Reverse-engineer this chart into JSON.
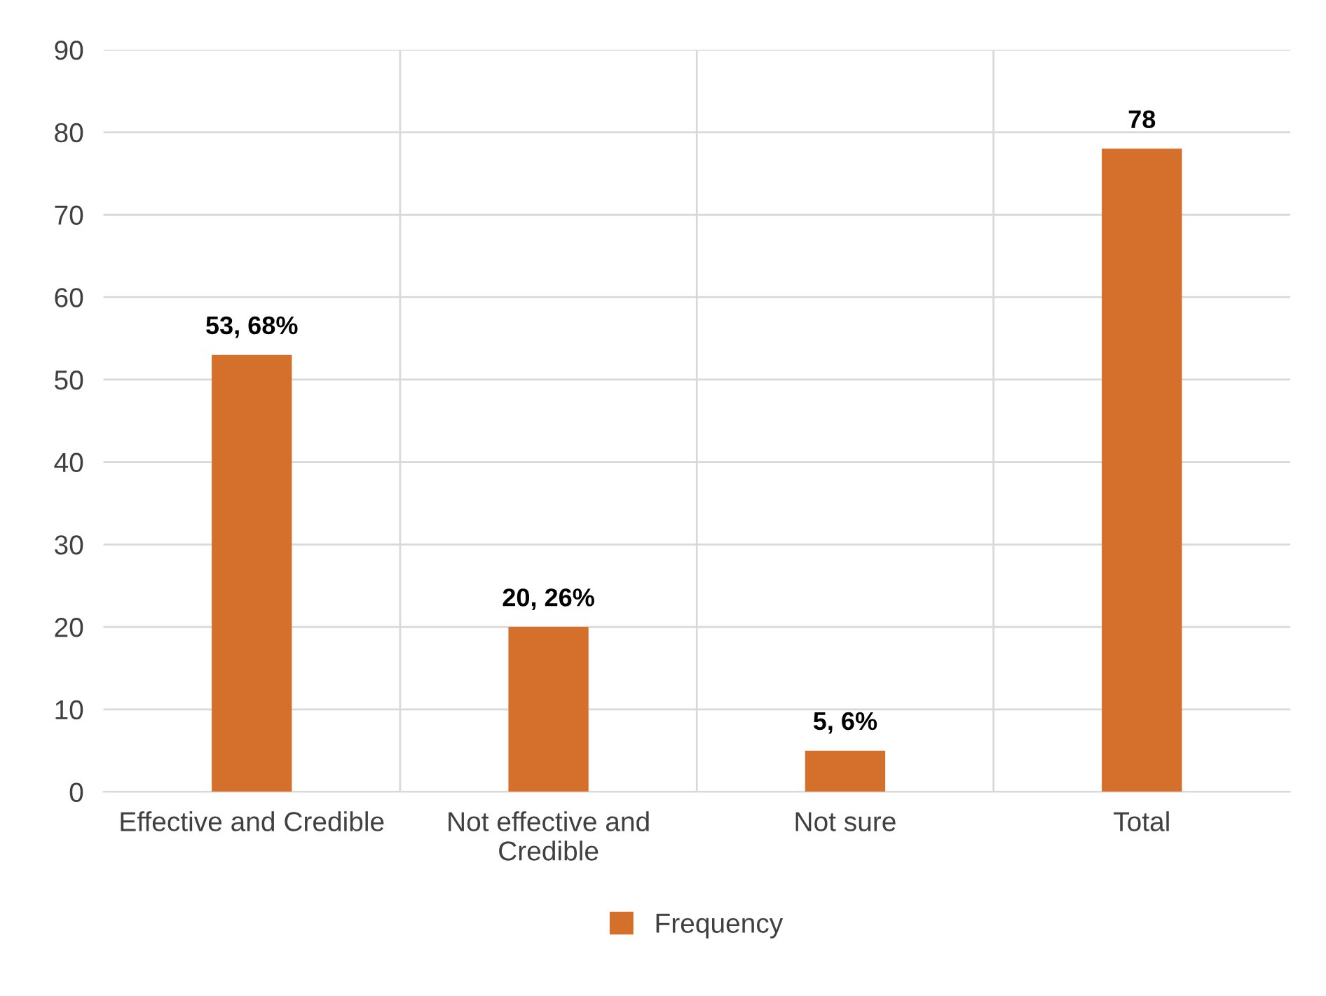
{
  "chart_data": {
    "type": "bar",
    "categories": [
      "Effective and Credible",
      "Not effective and\nCredible",
      "Not sure",
      "Total"
    ],
    "series": [
      {
        "name": "Frequency",
        "color": "#d4702c",
        "values": [
          53,
          20,
          5,
          78
        ],
        "value_labels": [
          "53, 68%",
          "20, 26%",
          "5, 6%",
          "78"
        ]
      }
    ],
    "ylim": [
      0,
      90
    ],
    "yticks": [
      0,
      10,
      20,
      30,
      40,
      50,
      60,
      70,
      80,
      90
    ],
    "grid": true,
    "legend": "bottom"
  }
}
